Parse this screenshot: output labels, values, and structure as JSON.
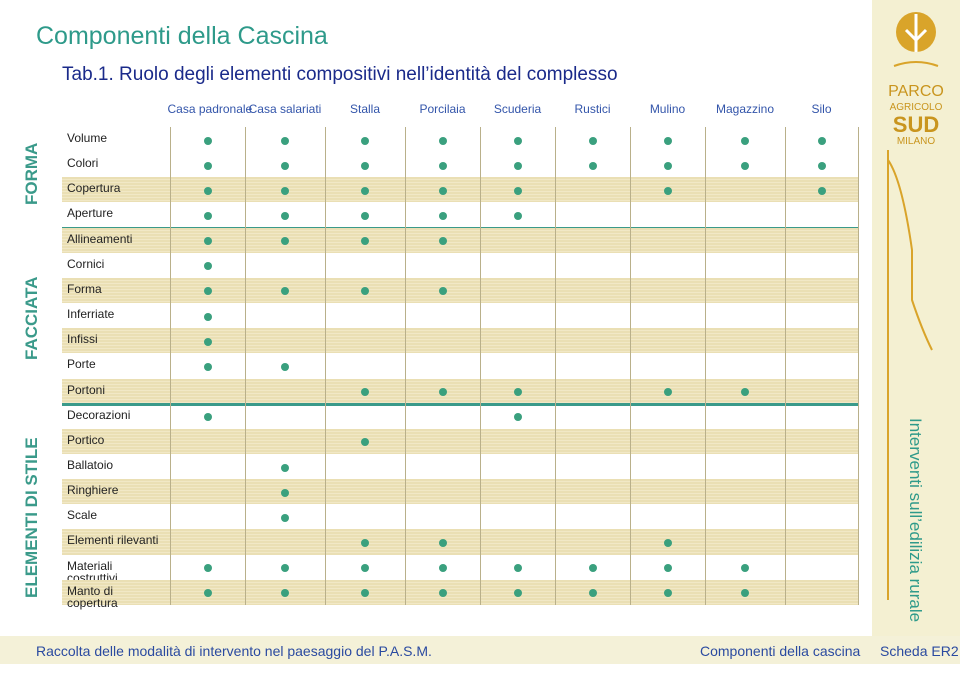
{
  "header": {
    "title": "Componenti della Cascina",
    "subtitle": "Tab.1. Ruolo degli elementi compositivi nell’identità del complesso"
  },
  "table": {
    "columns": [
      "Casa padronale",
      "Casa salariati",
      "Stalla",
      "Porcilaia",
      "Scuderia",
      "Rustici",
      "Mulino",
      "Magazzino",
      "Silo"
    ],
    "groups": [
      {
        "label": "FORMA",
        "rows": [
          {
            "label": "Volume",
            "marks": [
              true,
              true,
              true,
              true,
              true,
              true,
              true,
              true,
              true
            ]
          },
          {
            "label": "Colori",
            "marks": [
              true,
              true,
              true,
              true,
              true,
              true,
              true,
              true,
              true
            ]
          },
          {
            "label": "Copertura",
            "marks": [
              true,
              true,
              true,
              true,
              true,
              false,
              true,
              false,
              true
            ]
          },
          {
            "label": "Aperture",
            "marks": [
              true,
              true,
              true,
              true,
              true,
              false,
              false,
              false,
              false
            ]
          }
        ]
      },
      {
        "label": "FACCIATA",
        "rows": [
          {
            "label": "Allineamenti",
            "marks": [
              true,
              true,
              true,
              true,
              false,
              false,
              false,
              false,
              false
            ]
          },
          {
            "label": "Cornici",
            "marks": [
              true,
              false,
              false,
              false,
              false,
              false,
              false,
              false,
              false
            ]
          },
          {
            "label": "Forma",
            "marks": [
              true,
              true,
              true,
              true,
              false,
              false,
              false,
              false,
              false
            ]
          },
          {
            "label": "Inferriate",
            "marks": [
              true,
              false,
              false,
              false,
              false,
              false,
              false,
              false,
              false
            ]
          },
          {
            "label": "Infissi",
            "marks": [
              true,
              false,
              false,
              false,
              false,
              false,
              false,
              false,
              false
            ]
          },
          {
            "label": "Porte",
            "marks": [
              true,
              true,
              false,
              false,
              false,
              false,
              false,
              false,
              false
            ]
          },
          {
            "label": "Portoni",
            "marks": [
              false,
              false,
              true,
              true,
              true,
              false,
              true,
              true,
              false
            ]
          }
        ]
      },
      {
        "label": "ELEMENTI DI STILE",
        "rows": [
          {
            "label": "Decorazioni",
            "marks": [
              true,
              false,
              false,
              false,
              true,
              false,
              false,
              false,
              false
            ]
          },
          {
            "label": "Portico",
            "marks": [
              false,
              false,
              true,
              false,
              false,
              false,
              false,
              false,
              false
            ]
          },
          {
            "label": "Ballatoio",
            "marks": [
              false,
              true,
              false,
              false,
              false,
              false,
              false,
              false,
              false
            ]
          },
          {
            "label": "Ringhiere",
            "marks": [
              false,
              true,
              false,
              false,
              false,
              false,
              false,
              false,
              false
            ]
          },
          {
            "label": "Scale",
            "marks": [
              false,
              true,
              false,
              false,
              false,
              false,
              false,
              false,
              false
            ]
          },
          {
            "label": "Elementi rilevanti",
            "marks": [
              false,
              false,
              true,
              true,
              false,
              false,
              true,
              false,
              false
            ]
          },
          {
            "label": "Materiali costruttivi",
            "marks": [
              true,
              true,
              true,
              true,
              true,
              true,
              true,
              true,
              false
            ]
          },
          {
            "label": "Manto di copertura",
            "marks": [
              true,
              true,
              true,
              true,
              true,
              true,
              true,
              true,
              false
            ]
          }
        ]
      }
    ]
  },
  "sidebar": {
    "logo": [
      "PARCO",
      "AGRICOLO",
      "SUD",
      "MILANO"
    ],
    "caption": "Interventi sull’edilizia rurale"
  },
  "footer": {
    "left": "Raccolta delle modalità di intervento nel paesaggio del P.A.S.M.",
    "middle": "Componenti della cascina",
    "right": "Scheda ER2"
  }
}
